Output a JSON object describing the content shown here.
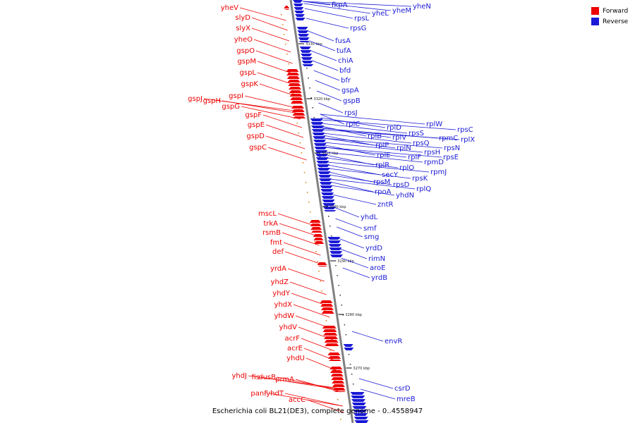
{
  "colors": {
    "forward": "#ee0000",
    "reverse": "#1a1ad6",
    "backbone": "#808080"
  },
  "legend": {
    "forward_label": "Forward",
    "reverse_label": "Reverse"
  },
  "caption": "Escherichia coli BL21(DE3), complete genome - 0..4558947",
  "ticks": [
    "3330 kbp",
    "3320 kbp",
    "3310 kbp",
    "3300 kbp",
    "3290 kbp",
    "3280 kbp",
    "3270 kbp"
  ],
  "labels": {
    "forward": [
      "yheV",
      "slyD",
      "slyX",
      "yheO",
      "gspO",
      "gspM",
      "gspL",
      "gspK",
      "gspJ",
      "gspH",
      "gspI",
      "gspG",
      "gspF",
      "gspE",
      "gspD",
      "gspC",
      "mscL",
      "trkA",
      "rsmB",
      "fmt",
      "def",
      "yrdA",
      "yhdZ",
      "yhdY",
      "yhdX",
      "yhdW",
      "yhdV",
      "acrF",
      "acrE",
      "yhdU",
      "yhdJ",
      "fis",
      "dusB",
      "prmA",
      "panF",
      "yhdT",
      "accC"
    ],
    "reverse": [
      "fkpA",
      "yheN",
      "yheM",
      "yheL",
      "rpsL",
      "rpsG",
      "fusA",
      "tufA",
      "chiA",
      "bfd",
      "bfr",
      "gspA",
      "gspB",
      "rpsJ",
      "rplC",
      "rplW",
      "rplD",
      "rpsC",
      "rpsS",
      "rplB",
      "rplV",
      "rplX",
      "rpmC",
      "rplP",
      "rpsQ",
      "rplN",
      "rpsN",
      "rplE",
      "rplF",
      "rpsH",
      "rpsE",
      "rplR",
      "rplO",
      "rpmD",
      "secY",
      "rpmJ",
      "rpsM",
      "rpsK",
      "rpsD",
      "rpoA",
      "rplQ",
      "yhdN",
      "zntR",
      "yhdL",
      "smf",
      "smg",
      "yrdD",
      "rimN",
      "aroE",
      "yrdB",
      "envR",
      "csrD",
      "mreB"
    ]
  }
}
